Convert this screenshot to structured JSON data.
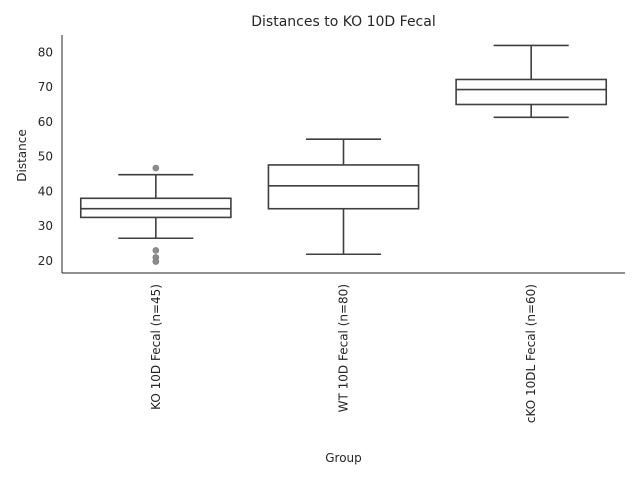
{
  "chart_data": {
    "type": "box",
    "title": "Distances to KO 10D Fecal",
    "xlabel": "Group",
    "ylabel": "Distance",
    "ylim": [
      16.5,
      85
    ],
    "yticks": [
      20,
      30,
      40,
      50,
      60,
      70,
      80
    ],
    "grid": false,
    "categories": [
      "KO 10D Fecal (n=45)",
      "WT 10D Fecal (n=80)",
      "cKO 10DL Fecal (n=60)"
    ],
    "boxes": [
      {
        "whisker_low": 26.5,
        "q1": 32.5,
        "median": 35.0,
        "q3": 38.0,
        "whisker_high": 44.8,
        "fliers": [
          46.7,
          23.0,
          21.0,
          19.8
        ]
      },
      {
        "whisker_low": 21.9,
        "q1": 35.0,
        "median": 41.6,
        "q3": 47.6,
        "whisker_high": 55.0,
        "fliers": []
      },
      {
        "whisker_low": 61.3,
        "q1": 65.0,
        "median": 69.3,
        "q3": 72.2,
        "whisker_high": 82.0,
        "fliers": []
      }
    ]
  }
}
